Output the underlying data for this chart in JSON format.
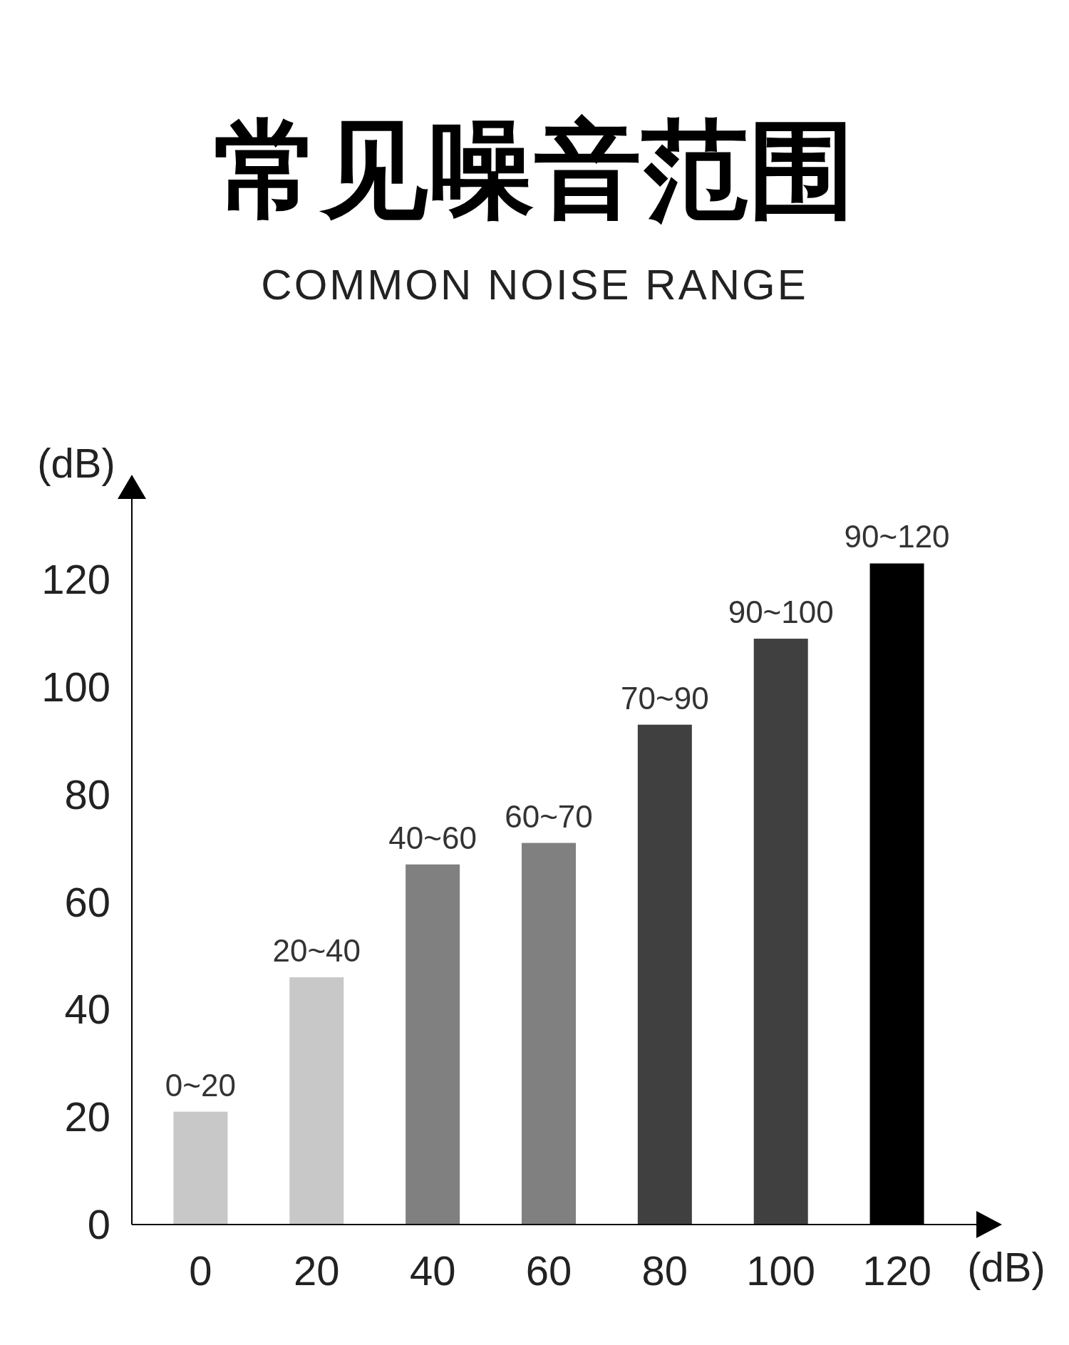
{
  "chart_data": {
    "type": "bar",
    "title": "常见噪音范围",
    "subtitle": "COMMON NOISE RANGE",
    "xlabel": "(dB)",
    "ylabel": "(dB)",
    "categories": [
      "0",
      "20",
      "40",
      "60",
      "80",
      "100",
      "120"
    ],
    "values": [
      21,
      46,
      67,
      71,
      93,
      109,
      123
    ],
    "colors": [
      "#c8c8c8",
      "#c8c8c8",
      "#808080",
      "#808080",
      "#404040",
      "#404040",
      "#000000"
    ],
    "annotations": [
      {
        "text": "0~20",
        "x": "0",
        "y": 21
      },
      {
        "text": "20~40",
        "x": "20",
        "y": 46
      },
      {
        "text": "40~60",
        "x": "40",
        "y": 67
      },
      {
        "text": "60~70",
        "x": "60",
        "y": 71
      },
      {
        "text": "70~90",
        "x": "80",
        "y": 93
      },
      {
        "text": "90~100",
        "x": "100",
        "y": 109
      },
      {
        "text": "90~120",
        "x": "120",
        "y": 123
      }
    ],
    "ylim": [
      0,
      135
    ],
    "yticks": [
      0,
      20,
      40,
      60,
      80,
      100,
      120
    ]
  }
}
